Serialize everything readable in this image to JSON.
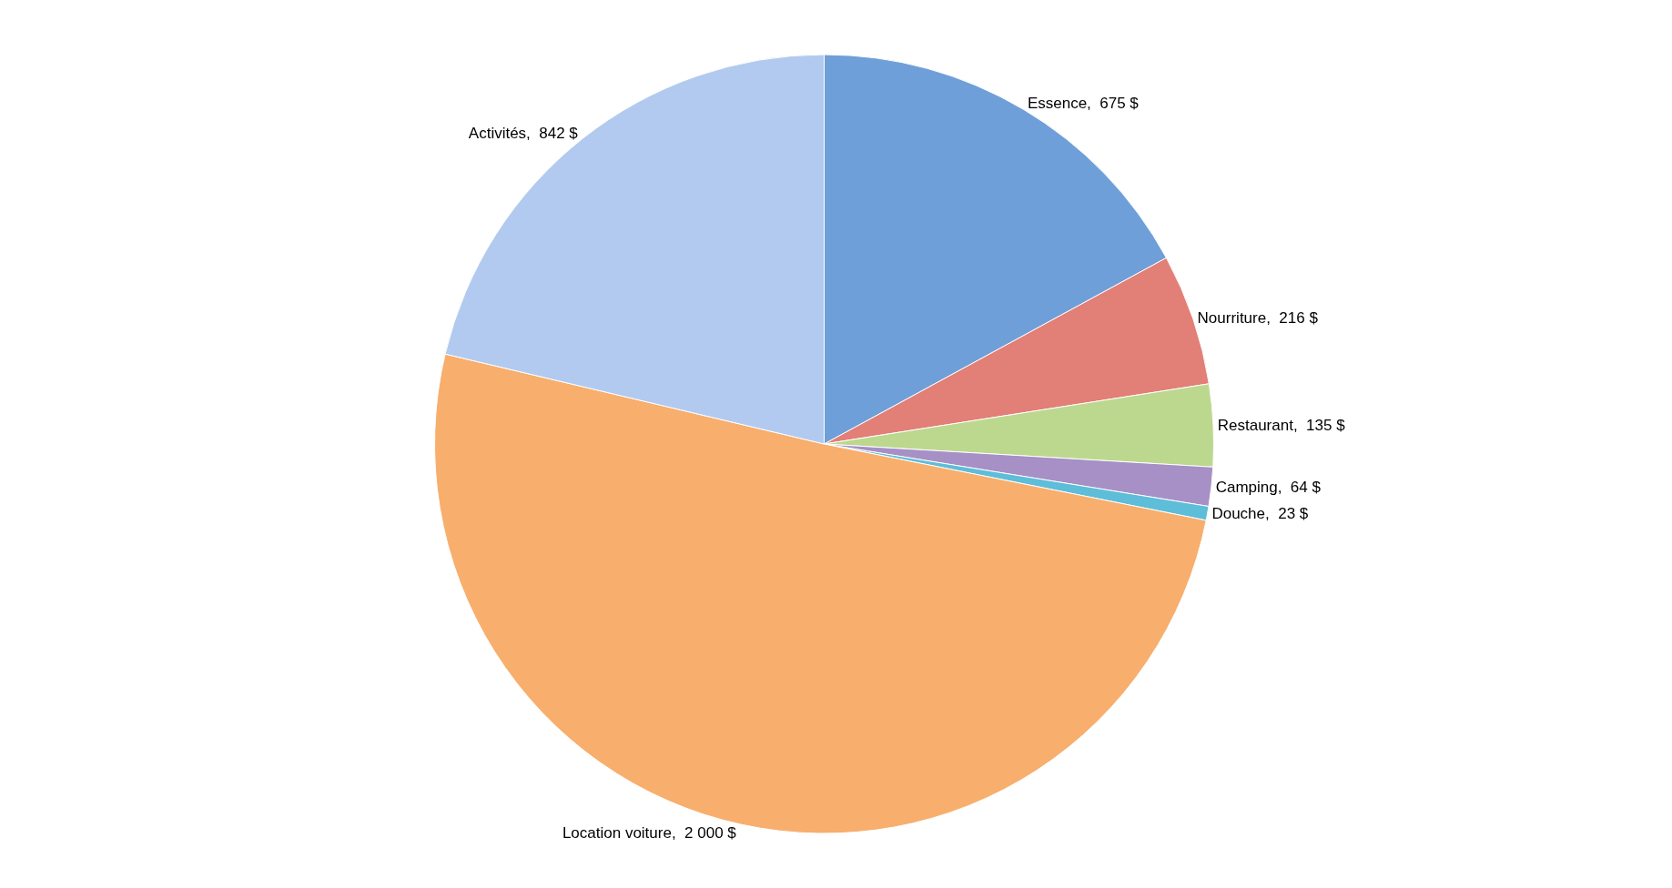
{
  "chart_data": {
    "type": "pie",
    "categories": [
      "Essence",
      "Nourriture",
      "Restaurant",
      "Camping",
      "Douche",
      "Location voiture",
      "Activités"
    ],
    "values": [
      675,
      216,
      135,
      64,
      23,
      2000,
      842
    ],
    "value_labels": [
      "675 $",
      "216 $",
      "135 $",
      "64 $",
      "23 $",
      "2 000 $",
      "842 $"
    ],
    "colors": [
      "#6f9fd8",
      "#e27f77",
      "#bcd88e",
      "#a690c6",
      "#5ebdd8",
      "#f8ae6c",
      "#b2caef"
    ],
    "legend": false
  }
}
